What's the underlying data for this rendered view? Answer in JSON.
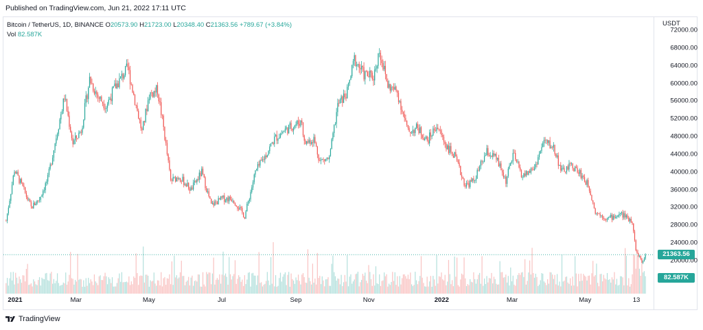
{
  "header": {
    "published": "Published on TradingView.com, Jun 21, 2022 17:11 UTC"
  },
  "legend": {
    "symbol": "Bitcoin / TetherUS, 1D, BINANCE",
    "o_label": "O",
    "o_value": "20573.90",
    "h_label": "H",
    "h_value": "21723.00",
    "l_label": "L",
    "l_value": "20348.40",
    "c_label": "C",
    "c_value": "21363.56",
    "change": "+789.67 (+3.84%)",
    "vol_label": "Vol",
    "vol_value": "82.587K"
  },
  "axis": {
    "currency": "USDT",
    "price_ticks": [
      "72000.00",
      "68000.00",
      "64000.00",
      "60000.00",
      "56000.00",
      "52000.00",
      "48000.00",
      "44000.00",
      "40000.00",
      "36000.00",
      "32000.00",
      "28000.00",
      "24000.00",
      "20000.00"
    ],
    "last_price_label": "21363.56",
    "volume_label": "82.587K",
    "time_ticks": [
      "2021",
      "Mar",
      "May",
      "Jul",
      "Sep",
      "Nov",
      "2022",
      "Mar",
      "May",
      "13"
    ]
  },
  "colors": {
    "up": "#26a69a",
    "down": "#ef5350",
    "label_bg": "#26a69a"
  },
  "footer": {
    "brand": "TradingView",
    "logo_icon": "tradingview-logo-icon"
  },
  "chart_data": {
    "type": "candlestick",
    "title": "Bitcoin / TetherUS, 1D, BINANCE",
    "x_range": [
      "2021-01-01",
      "2022-06-21"
    ],
    "y_axis": "USDT",
    "ylim": [
      20000,
      72000
    ],
    "last_close": 21363.56,
    "last_volume": "82.587K",
    "weekly_path": [
      {
        "date": "2021-01-01",
        "close": 29000
      },
      {
        "date": "2021-01-08",
        "close": 40500
      },
      {
        "date": "2021-01-15",
        "close": 36500
      },
      {
        "date": "2021-01-22",
        "close": 32000
      },
      {
        "date": "2021-01-29",
        "close": 34000
      },
      {
        "date": "2021-02-05",
        "close": 38500
      },
      {
        "date": "2021-02-12",
        "close": 48000
      },
      {
        "date": "2021-02-19",
        "close": 57000
      },
      {
        "date": "2021-02-26",
        "close": 46500
      },
      {
        "date": "2021-03-05",
        "close": 49500
      },
      {
        "date": "2021-03-12",
        "close": 61000
      },
      {
        "date": "2021-03-19",
        "close": 57000
      },
      {
        "date": "2021-03-26",
        "close": 55000
      },
      {
        "date": "2021-04-02",
        "close": 59000
      },
      {
        "date": "2021-04-13",
        "close": 63500
      },
      {
        "date": "2021-04-20",
        "close": 55000
      },
      {
        "date": "2021-04-25",
        "close": 49000
      },
      {
        "date": "2021-05-01",
        "close": 57500
      },
      {
        "date": "2021-05-08",
        "close": 58500
      },
      {
        "date": "2021-05-13",
        "close": 50000
      },
      {
        "date": "2021-05-19",
        "close": 38000
      },
      {
        "date": "2021-05-26",
        "close": 39000
      },
      {
        "date": "2021-06-05",
        "close": 36000
      },
      {
        "date": "2021-06-14",
        "close": 40000
      },
      {
        "date": "2021-06-22",
        "close": 32500
      },
      {
        "date": "2021-07-01",
        "close": 34000
      },
      {
        "date": "2021-07-10",
        "close": 34000
      },
      {
        "date": "2021-07-20",
        "close": 30000
      },
      {
        "date": "2021-07-29",
        "close": 40000
      },
      {
        "date": "2021-08-07",
        "close": 44000
      },
      {
        "date": "2021-08-14",
        "close": 47500
      },
      {
        "date": "2021-08-23",
        "close": 49500
      },
      {
        "date": "2021-09-06",
        "close": 51500
      },
      {
        "date": "2021-09-08",
        "close": 46500
      },
      {
        "date": "2021-09-16",
        "close": 47500
      },
      {
        "date": "2021-09-21",
        "close": 42500
      },
      {
        "date": "2021-09-29",
        "close": 43000
      },
      {
        "date": "2021-10-06",
        "close": 55000
      },
      {
        "date": "2021-10-14",
        "close": 58000
      },
      {
        "date": "2021-10-20",
        "close": 65500
      },
      {
        "date": "2021-10-28",
        "close": 62000
      },
      {
        "date": "2021-11-05",
        "close": 61500
      },
      {
        "date": "2021-11-10",
        "close": 67500
      },
      {
        "date": "2021-11-17",
        "close": 59500
      },
      {
        "date": "2021-11-25",
        "close": 58000
      },
      {
        "date": "2021-12-04",
        "close": 49000
      },
      {
        "date": "2021-12-12",
        "close": 50000
      },
      {
        "date": "2021-12-20",
        "close": 47000
      },
      {
        "date": "2021-12-28",
        "close": 50500
      },
      {
        "date": "2022-01-05",
        "close": 46000
      },
      {
        "date": "2022-01-12",
        "close": 43500
      },
      {
        "date": "2022-01-21",
        "close": 37000
      },
      {
        "date": "2022-01-28",
        "close": 38000
      },
      {
        "date": "2022-02-08",
        "close": 44500
      },
      {
        "date": "2022-02-16",
        "close": 43000
      },
      {
        "date": "2022-02-24",
        "close": 38000
      },
      {
        "date": "2022-03-02",
        "close": 44000
      },
      {
        "date": "2022-03-10",
        "close": 39000
      },
      {
        "date": "2022-03-20",
        "close": 41000
      },
      {
        "date": "2022-03-28",
        "close": 47000
      },
      {
        "date": "2022-04-05",
        "close": 45500
      },
      {
        "date": "2022-04-12",
        "close": 40000
      },
      {
        "date": "2022-04-20",
        "close": 41500
      },
      {
        "date": "2022-04-28",
        "close": 39500
      },
      {
        "date": "2022-05-05",
        "close": 36500
      },
      {
        "date": "2022-05-10",
        "close": 31000
      },
      {
        "date": "2022-05-20",
        "close": 29500
      },
      {
        "date": "2022-06-01",
        "close": 30500
      },
      {
        "date": "2022-06-10",
        "close": 29000
      },
      {
        "date": "2022-06-13",
        "close": 22500
      },
      {
        "date": "2022-06-18",
        "close": 19500
      },
      {
        "date": "2022-06-21",
        "close": 21363.56
      }
    ]
  }
}
